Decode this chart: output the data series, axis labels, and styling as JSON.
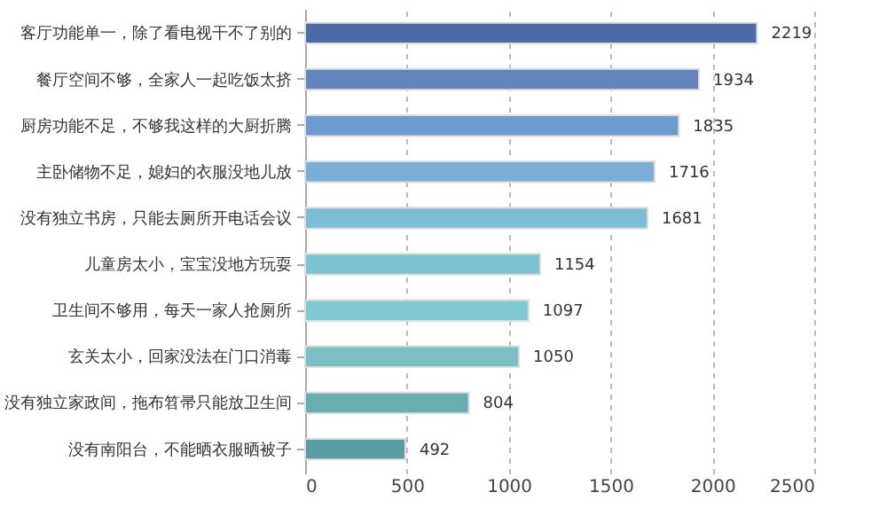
{
  "chart_data": {
    "type": "bar",
    "orientation": "horizontal",
    "categories": [
      "客厅功能单一，除了看电视干不了别的",
      "餐厅空间不够，全家人一起吃饭太挤",
      "厨房功能不足，不够我这样的大厨折腾",
      "主卧储物不足，媳妇的衣服没地儿放",
      "没有独立书房，只能去厕所开电话会议",
      "儿童房太小，宝宝没地方玩耍",
      "卫生间不够用，每天一家人抢厕所",
      "玄关太小，回家没法在门口消毒",
      "没有独立家政间，拖布笤帚只能放卫生间",
      "没有南阳台，不能晒衣服晒被子"
    ],
    "values": [
      2219,
      1934,
      1835,
      1716,
      1681,
      1154,
      1097,
      1050,
      804,
      492
    ],
    "colors": [
      "#4f6aa8",
      "#6285c0",
      "#6d9bcf",
      "#7aaed6",
      "#7dbcd6",
      "#7dc3d3",
      "#80c8d4",
      "#7bbfc5",
      "#6aadb0",
      "#5a9ea5"
    ],
    "xlim": [
      0,
      2500
    ],
    "xticks": [
      0,
      500,
      1000,
      1500,
      2000,
      2500
    ],
    "grid": "x",
    "data_labels": true
  }
}
